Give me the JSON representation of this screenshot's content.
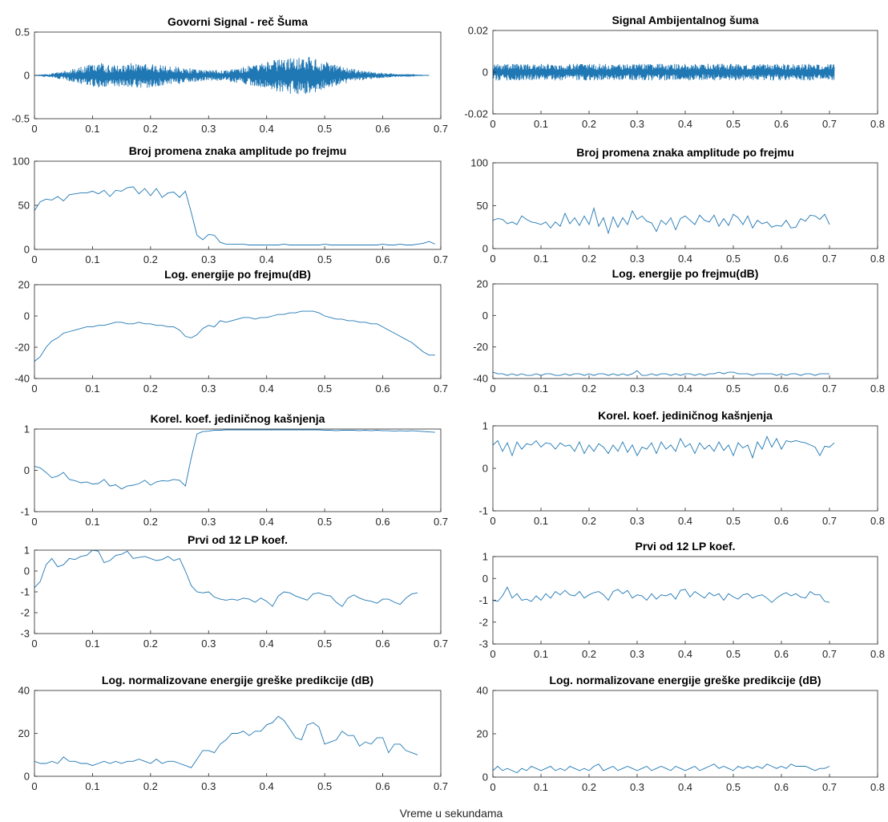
{
  "figure": {
    "xlabel": "Vreme u sekundama"
  },
  "chart_data": [
    {
      "id": "l0",
      "type": "line",
      "title": "Govorni Signal - reč Šuma",
      "xlim": [
        0,
        0.7
      ],
      "ylim": [
        -0.5,
        0.5
      ],
      "xticks": [
        "0",
        "0.1",
        "0.2",
        "0.3",
        "0.4",
        "0.5",
        "0.6",
        "0.7"
      ],
      "yticks": [
        "-0.5",
        "0",
        "0.5"
      ],
      "series": [
        {
          "kind": "dense_signal",
          "duration": 0.68,
          "envelope": {
            "t": [
              0,
              0.02,
              0.05,
              0.08,
              0.11,
              0.13,
              0.16,
              0.19,
              0.22,
              0.25,
              0.27,
              0.3,
              0.33,
              0.36,
              0.39,
              0.42,
              0.45,
              0.48,
              0.5,
              0.53,
              0.56,
              0.6,
              0.63,
              0.66,
              0.68
            ],
            "a": [
              0,
              0.01,
              0.05,
              0.1,
              0.15,
              0.12,
              0.14,
              0.15,
              0.12,
              0.1,
              0.08,
              0.06,
              0.07,
              0.1,
              0.14,
              0.19,
              0.22,
              0.21,
              0.16,
              0.1,
              0.06,
              0.03,
              0.015,
              0.005,
              0
            ]
          }
        }
      ]
    },
    {
      "id": "r0",
      "type": "line",
      "title": "Signal Ambijentalnog šuma",
      "xlim": [
        0,
        0.8
      ],
      "ylim": [
        -0.02,
        0.02
      ],
      "xticks": [
        "0",
        "0.1",
        "0.2",
        "0.3",
        "0.4",
        "0.5",
        "0.6",
        "0.7",
        "0.8"
      ],
      "yticks": [
        "-0.02",
        "0",
        "0.02"
      ],
      "series": [
        {
          "kind": "dense_signal",
          "duration": 0.71,
          "envelope": {
            "t": [
              0,
              0.71
            ],
            "a": [
              0.004,
              0.004
            ]
          }
        }
      ]
    },
    {
      "id": "l1",
      "type": "line",
      "title": "Broj promena znaka amplitude po frejmu",
      "xlim": [
        0,
        0.7
      ],
      "ylim": [
        0,
        100
      ],
      "xticks": [
        "0",
        "0.1",
        "0.2",
        "0.3",
        "0.4",
        "0.5",
        "0.6",
        "0.7"
      ],
      "yticks": [
        "0",
        "50",
        "100"
      ],
      "series": [
        {
          "x0": 0,
          "dx": 0.01,
          "y": [
            44,
            54,
            57,
            56,
            60,
            55,
            62,
            63,
            64,
            64,
            66,
            63,
            67,
            60,
            67,
            66,
            70,
            71,
            63,
            69,
            61,
            69,
            59,
            64,
            65,
            59,
            66,
            42,
            16,
            11,
            17,
            16,
            8,
            6,
            6,
            6,
            6,
            5,
            5,
            5,
            5,
            5,
            5,
            6,
            5,
            5,
            5,
            5,
            5,
            5,
            6,
            5,
            5,
            5,
            5,
            5,
            5,
            5,
            5,
            5,
            6,
            5,
            5,
            6,
            5,
            5,
            6,
            7,
            9,
            6
          ]
        }
      ]
    },
    {
      "id": "r1",
      "type": "line",
      "title": "Broj promena znaka amplitude po frejmu",
      "xlim": [
        0,
        0.8
      ],
      "ylim": [
        0,
        100
      ],
      "xticks": [
        "0",
        "0.1",
        "0.2",
        "0.3",
        "0.4",
        "0.5",
        "0.6",
        "0.7",
        "0.8"
      ],
      "yticks": [
        "0",
        "50",
        "100"
      ],
      "series": [
        {
          "x0": 0,
          "dx": 0.01,
          "y": [
            33,
            35,
            34,
            29,
            31,
            28,
            38,
            34,
            31,
            30,
            28,
            31,
            24,
            31,
            26,
            41,
            29,
            36,
            27,
            38,
            28,
            47,
            26,
            36,
            18,
            37,
            25,
            36,
            28,
            44,
            34,
            38,
            32,
            30,
            20,
            33,
            28,
            36,
            22,
            35,
            38,
            33,
            28,
            39,
            33,
            31,
            39,
            26,
            35,
            27,
            40,
            36,
            28,
            38,
            24,
            33,
            29,
            31,
            25,
            27,
            26,
            33,
            24,
            25,
            35,
            32,
            39,
            38,
            34,
            40,
            28
          ]
        }
      ]
    },
    {
      "id": "l2",
      "type": "line",
      "title": "Log. energije po frejmu(dB)",
      "xlim": [
        0,
        0.7
      ],
      "ylim": [
        -40,
        20
      ],
      "xticks": [
        "0",
        "0.1",
        "0.2",
        "0.3",
        "0.4",
        "0.5",
        "0.6",
        "0.7"
      ],
      "yticks": [
        "-40",
        "-20",
        "0",
        "20"
      ],
      "series": [
        {
          "x0": 0,
          "dx": 0.01,
          "y": [
            -29,
            -26,
            -20,
            -16,
            -14,
            -11,
            -10,
            -9,
            -8,
            -7,
            -7,
            -6,
            -6,
            -5,
            -4,
            -4,
            -5,
            -5,
            -4,
            -5,
            -5,
            -6,
            -6,
            -7,
            -7,
            -9,
            -13,
            -14,
            -12,
            -8,
            -6,
            -7,
            -3,
            -4,
            -3,
            -2,
            -1,
            -1,
            -2,
            -1,
            -1,
            0,
            1,
            1,
            2,
            2,
            3,
            3,
            3,
            2,
            0,
            -1,
            -2,
            -2,
            -3,
            -3,
            -4,
            -4,
            -5,
            -5,
            -7,
            -9,
            -11,
            -13,
            -15,
            -17,
            -20,
            -23,
            -25,
            -25
          ]
        }
      ]
    },
    {
      "id": "r2",
      "type": "line",
      "title": "Log. energije po frejmu(dB)",
      "xlim": [
        0,
        0.8
      ],
      "ylim": [
        -40,
        20
      ],
      "xticks": [
        "0",
        "0.1",
        "0.2",
        "0.3",
        "0.4",
        "0.5",
        "0.6",
        "0.7",
        "0.8"
      ],
      "yticks": [
        "-40",
        "-20",
        "0",
        "20"
      ],
      "series": [
        {
          "x0": 0,
          "dx": 0.01,
          "y": [
            -36,
            -37,
            -37,
            -38,
            -37,
            -38,
            -37,
            -38,
            -38,
            -37,
            -38,
            -37,
            -37,
            -38,
            -38,
            -37,
            -38,
            -37,
            -37,
            -38,
            -37,
            -38,
            -37,
            -37,
            -38,
            -37,
            -38,
            -37,
            -38,
            -37,
            -35,
            -38,
            -38,
            -37,
            -38,
            -37,
            -37,
            -38,
            -37,
            -38,
            -37,
            -37,
            -38,
            -37,
            -38,
            -37,
            -37,
            -36,
            -37,
            -36,
            -36,
            -37,
            -37,
            -37,
            -38,
            -37,
            -37,
            -37,
            -37,
            -38,
            -37,
            -38,
            -37,
            -37,
            -38,
            -37,
            -37,
            -38,
            -37,
            -37,
            -37
          ]
        }
      ]
    },
    {
      "id": "l3",
      "type": "line",
      "title": "Korel. koef. jediničnog kašnjenja",
      "xlim": [
        0,
        0.7
      ],
      "ylim": [
        -1,
        1
      ],
      "xticks": [
        "0",
        "0.1",
        "0.2",
        "0.3",
        "0.4",
        "0.5",
        "0.6",
        "0.7"
      ],
      "yticks": [
        "-1",
        "0",
        "1"
      ],
      "series": [
        {
          "x0": 0,
          "dx": 0.01,
          "y": [
            0.1,
            0.06,
            -0.05,
            -0.18,
            -0.14,
            -0.05,
            -0.22,
            -0.25,
            -0.3,
            -0.28,
            -0.33,
            -0.32,
            -0.22,
            -0.38,
            -0.35,
            -0.45,
            -0.38,
            -0.36,
            -0.32,
            -0.24,
            -0.36,
            -0.28,
            -0.25,
            -0.26,
            -0.22,
            -0.24,
            -0.38,
            0.3,
            0.88,
            0.94,
            0.95,
            0.97,
            0.97,
            0.98,
            0.98,
            0.98,
            0.98,
            0.98,
            0.98,
            0.98,
            0.98,
            0.98,
            0.98,
            0.98,
            0.98,
            0.98,
            0.98,
            0.98,
            0.98,
            0.98,
            0.97,
            0.97,
            0.96,
            0.97,
            0.97,
            0.97,
            0.96,
            0.97,
            0.96,
            0.97,
            0.96,
            0.96,
            0.95,
            0.96,
            0.95,
            0.96,
            0.95,
            0.94,
            0.93,
            0.92
          ]
        }
      ]
    },
    {
      "id": "r3",
      "type": "line",
      "title": "Korel. koef. jediničnog kašnjenja",
      "xlim": [
        0,
        0.8
      ],
      "ylim": [
        -1,
        1
      ],
      "xticks": [
        "0",
        "0.1",
        "0.2",
        "0.3",
        "0.4",
        "0.5",
        "0.6",
        "0.7",
        "0.8"
      ],
      "yticks": [
        "-1",
        "0",
        "1"
      ],
      "series": [
        {
          "x0": 0,
          "dx": 0.01,
          "y": [
            0.55,
            0.65,
            0.4,
            0.6,
            0.3,
            0.62,
            0.45,
            0.58,
            0.55,
            0.65,
            0.5,
            0.6,
            0.58,
            0.45,
            0.6,
            0.52,
            0.55,
            0.4,
            0.62,
            0.35,
            0.55,
            0.4,
            0.58,
            0.5,
            0.35,
            0.55,
            0.4,
            0.62,
            0.38,
            0.55,
            0.3,
            0.5,
            0.45,
            0.6,
            0.35,
            0.62,
            0.45,
            0.55,
            0.4,
            0.7,
            0.5,
            0.58,
            0.35,
            0.6,
            0.45,
            0.55,
            0.4,
            0.62,
            0.42,
            0.55,
            0.3,
            0.6,
            0.48,
            0.55,
            0.25,
            0.62,
            0.45,
            0.75,
            0.5,
            0.7,
            0.45,
            0.65,
            0.62,
            0.65,
            0.62,
            0.6,
            0.55,
            0.5,
            0.3,
            0.52,
            0.5,
            0.6
          ]
        }
      ]
    },
    {
      "id": "l4",
      "type": "line",
      "title": "Prvi od 12 LP koef.",
      "xlim": [
        0,
        0.7
      ],
      "ylim": [
        -3,
        1
      ],
      "xticks": [
        "0",
        "0.1",
        "0.2",
        "0.3",
        "0.4",
        "0.5",
        "0.6",
        "0.7"
      ],
      "yticks": [
        "-3",
        "-2",
        "-1",
        "0",
        "1"
      ],
      "series": [
        {
          "x0": 0,
          "dx": 0.01,
          "y": [
            -0.8,
            -0.5,
            0.3,
            0.6,
            0.2,
            0.3,
            0.6,
            0.55,
            0.7,
            0.75,
            1.0,
            0.95,
            0.4,
            0.5,
            0.75,
            0.8,
            0.95,
            0.6,
            0.65,
            0.7,
            0.6,
            0.5,
            0.55,
            0.7,
            0.5,
            0.6,
            0.0,
            -0.7,
            -1.0,
            -1.05,
            -1.0,
            -1.25,
            -1.35,
            -1.4,
            -1.35,
            -1.4,
            -1.3,
            -1.35,
            -1.5,
            -1.3,
            -1.45,
            -1.7,
            -1.2,
            -1.0,
            -1.05,
            -1.2,
            -1.3,
            -1.4,
            -1.1,
            -1.05,
            -1.15,
            -1.2,
            -1.5,
            -1.7,
            -1.3,
            -1.15,
            -1.3,
            -1.4,
            -1.45,
            -1.55,
            -1.35,
            -1.35,
            -1.5,
            -1.6,
            -1.3,
            -1.1,
            -1.05
          ]
        }
      ]
    },
    {
      "id": "r4",
      "type": "line",
      "title": "Prvi od 12 LP koef.",
      "xlim": [
        0,
        0.8
      ],
      "ylim": [
        -3,
        1
      ],
      "xticks": [
        "0",
        "0.1",
        "0.2",
        "0.3",
        "0.4",
        "0.5",
        "0.6",
        "0.7",
        "0.8"
      ],
      "yticks": [
        "-3",
        "-2",
        "-1",
        "0",
        "1"
      ],
      "series": [
        {
          "x0": 0,
          "dx": 0.01,
          "y": [
            -1.0,
            -1.05,
            -0.8,
            -0.4,
            -0.9,
            -0.7,
            -1.0,
            -0.95,
            -1.05,
            -0.8,
            -1.0,
            -0.7,
            -0.9,
            -0.6,
            -0.75,
            -0.55,
            -0.75,
            -0.8,
            -0.6,
            -0.9,
            -0.75,
            -0.65,
            -0.6,
            -0.75,
            -1.0,
            -0.6,
            -0.5,
            -0.7,
            -0.55,
            -0.9,
            -0.75,
            -0.8,
            -1.0,
            -0.7,
            -0.95,
            -0.75,
            -0.8,
            -0.7,
            -0.95,
            -0.55,
            -0.5,
            -0.85,
            -0.6,
            -0.75,
            -0.9,
            -0.65,
            -0.8,
            -0.7,
            -1.0,
            -0.7,
            -0.85,
            -0.95,
            -0.75,
            -0.7,
            -0.9,
            -0.8,
            -0.75,
            -0.9,
            -1.1,
            -0.9,
            -0.75,
            -0.65,
            -0.8,
            -0.7,
            -0.85,
            -0.9,
            -0.6,
            -0.75,
            -0.75,
            -1.05,
            -1.1
          ]
        }
      ]
    },
    {
      "id": "l5",
      "type": "line",
      "title": "Log. normalizovane energije greške predikcije (dB)",
      "xlim": [
        0,
        0.7
      ],
      "ylim": [
        0,
        40
      ],
      "xticks": [
        "0",
        "0.1",
        "0.2",
        "0.3",
        "0.4",
        "0.5",
        "0.6",
        "0.7"
      ],
      "yticks": [
        "0",
        "20",
        "40"
      ],
      "series": [
        {
          "x0": 0,
          "dx": 0.01,
          "y": [
            7,
            6,
            6,
            7,
            6,
            9,
            7,
            7,
            6,
            6,
            5,
            6,
            7,
            6,
            7,
            6,
            7,
            7,
            8,
            7,
            6,
            8,
            6,
            7,
            7,
            6,
            5,
            4,
            8,
            12,
            12,
            11,
            15,
            17,
            20,
            20,
            21,
            19,
            21,
            21,
            24,
            25,
            28,
            26,
            22,
            18,
            17,
            24,
            25,
            23,
            15,
            16,
            17,
            21,
            19,
            19,
            14,
            16,
            15,
            18,
            18,
            11,
            15,
            15,
            12,
            11,
            10
          ]
        }
      ]
    },
    {
      "id": "r5",
      "type": "line",
      "title": "Log. normalizovane energije greške predikcije (dB)",
      "xlim": [
        0,
        0.8
      ],
      "ylim": [
        0,
        40
      ],
      "xticks": [
        "0",
        "0.1",
        "0.2",
        "0.3",
        "0.4",
        "0.5",
        "0.6",
        "0.7",
        "0.8"
      ],
      "yticks": [
        "0",
        "20",
        "40"
      ],
      "series": [
        {
          "x0": 0,
          "dx": 0.01,
          "y": [
            3,
            5,
            3,
            4,
            3,
            2,
            4,
            3,
            5,
            4,
            3,
            4,
            5,
            3,
            4,
            3,
            5,
            4,
            3,
            4,
            3,
            5,
            6,
            3,
            4,
            5,
            3,
            4,
            5,
            4,
            3,
            4,
            5,
            3,
            4,
            5,
            4,
            3,
            5,
            4,
            3,
            4,
            5,
            3,
            4,
            5,
            6,
            4,
            5,
            4,
            3,
            5,
            4,
            5,
            4,
            5,
            4,
            6,
            5,
            4,
            5,
            4,
            6,
            5,
            5,
            5,
            4,
            3,
            4,
            4,
            5
          ]
        }
      ]
    }
  ]
}
